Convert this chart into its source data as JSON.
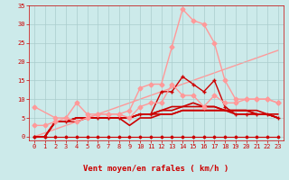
{
  "bg_color": "#cceaea",
  "grid_color": "#aacccc",
  "text_color": "#cc0000",
  "xlabel": "Vent moyen/en rafales ( km/h )",
  "xlim": [
    -0.5,
    23.5
  ],
  "ylim": [
    -1,
    35
  ],
  "yticks": [
    0,
    5,
    10,
    15,
    20,
    25,
    30,
    35
  ],
  "xticks": [
    0,
    1,
    2,
    3,
    4,
    5,
    6,
    7,
    8,
    9,
    10,
    11,
    12,
    13,
    14,
    15,
    16,
    17,
    18,
    19,
    20,
    21,
    22,
    23
  ],
  "series": [
    {
      "x": [
        0,
        1,
        2,
        3,
        4,
        5,
        6,
        7,
        8,
        9,
        10,
        11,
        12,
        13,
        14,
        15,
        16,
        17,
        18,
        19,
        20,
        21,
        22,
        23
      ],
      "y": [
        0,
        0,
        0,
        0,
        0,
        0,
        0,
        0,
        0,
        0,
        0,
        0,
        0,
        0,
        0,
        0,
        0,
        0,
        0,
        0,
        0,
        0,
        0,
        0
      ],
      "color": "#cc0000",
      "lw": 0.8,
      "marker": "D",
      "ms": 1.5,
      "zorder": 3
    },
    {
      "x": [
        0,
        1,
        2,
        3,
        4,
        5,
        6,
        7,
        8,
        9,
        10,
        11,
        12,
        13,
        14,
        15,
        16,
        17,
        18,
        19,
        20,
        21,
        22,
        23
      ],
      "y": [
        0,
        0,
        4,
        4,
        4,
        5,
        5,
        5,
        5,
        5,
        6,
        6,
        12,
        12,
        16,
        14,
        12,
        15,
        8,
        6,
        6,
        6,
        6,
        5
      ],
      "color": "#cc0000",
      "lw": 1.0,
      "marker": "+",
      "ms": 3,
      "zorder": 4
    },
    {
      "x": [
        0,
        1,
        2,
        3,
        4,
        5,
        6,
        7,
        8,
        9,
        10,
        11,
        12,
        13,
        14,
        15,
        16,
        17,
        18,
        19,
        20,
        21,
        22,
        23
      ],
      "y": [
        0,
        0,
        4,
        4,
        5,
        5,
        5,
        5,
        5,
        5,
        6,
        6,
        7,
        7,
        8,
        8,
        8,
        8,
        7,
        6,
        6,
        6,
        6,
        5
      ],
      "color": "#cc0000",
      "lw": 1.2,
      "marker": null,
      "ms": 0,
      "zorder": 2
    },
    {
      "x": [
        0,
        1,
        2,
        3,
        4,
        5,
        6,
        7,
        8,
        9,
        10,
        11,
        12,
        13,
        14,
        15,
        16,
        17,
        18,
        19,
        20,
        21,
        22,
        23
      ],
      "y": [
        0,
        0,
        4,
        4,
        5,
        5,
        5,
        5,
        5,
        3,
        5,
        5,
        6,
        6,
        7,
        7,
        7,
        7,
        7,
        7,
        7,
        6,
        6,
        5
      ],
      "color": "#cc0000",
      "lw": 1.2,
      "marker": null,
      "ms": 0,
      "zorder": 2
    },
    {
      "x": [
        0,
        1,
        2,
        3,
        4,
        5,
        6,
        7,
        8,
        9,
        10,
        11,
        12,
        13,
        14,
        15,
        16,
        17,
        18,
        19,
        20,
        21,
        22,
        23
      ],
      "y": [
        0,
        0,
        4,
        4,
        5,
        5,
        5,
        5,
        5,
        5,
        6,
        6,
        6,
        6,
        7,
        7,
        7,
        7,
        7,
        7,
        7,
        6,
        6,
        5
      ],
      "color": "#cc0000",
      "lw": 1.2,
      "marker": null,
      "ms": 0,
      "zorder": 2
    },
    {
      "x": [
        0,
        1,
        2,
        3,
        4,
        5,
        6,
        7,
        8,
        9,
        10,
        11,
        12,
        13,
        14,
        15,
        16,
        17,
        18,
        19,
        20,
        21,
        22,
        23
      ],
      "y": [
        0,
        0,
        4,
        4,
        5,
        5,
        5,
        5,
        5,
        5,
        6,
        6,
        7,
        8,
        8,
        9,
        8,
        8,
        7,
        7,
        7,
        7,
        6,
        6
      ],
      "color": "#cc0000",
      "lw": 1.2,
      "marker": null,
      "ms": 0,
      "zorder": 2
    },
    {
      "x": [
        0,
        2,
        3,
        4,
        5,
        6,
        7,
        8,
        9,
        10,
        11,
        12,
        13,
        14,
        15,
        16,
        17,
        18,
        19,
        20,
        21,
        22,
        23
      ],
      "y": [
        8,
        5,
        5,
        4,
        5,
        6,
        6,
        6,
        7,
        13,
        14,
        14,
        24,
        34,
        31,
        30,
        25,
        15,
        10,
        10,
        10,
        10,
        9
      ],
      "color": "#ff9999",
      "lw": 1.0,
      "marker": "D",
      "ms": 2.5,
      "zorder": 5
    },
    {
      "x": [
        0,
        1,
        2,
        3,
        4,
        5,
        6,
        7,
        8,
        9,
        10,
        11,
        12,
        13,
        14,
        15,
        16,
        17,
        18,
        19,
        20,
        21,
        22,
        23
      ],
      "y": [
        3,
        3,
        4,
        5,
        9,
        6,
        6,
        6,
        6,
        5,
        8,
        9,
        9,
        14,
        11,
        11,
        8,
        11,
        9,
        9,
        10,
        10,
        10,
        9
      ],
      "color": "#ff9999",
      "lw": 1.0,
      "marker": "D",
      "ms": 2.5,
      "zorder": 5
    },
    {
      "x": [
        0,
        23
      ],
      "y": [
        0,
        23
      ],
      "color": "#ff9999",
      "lw": 1.0,
      "marker": null,
      "ms": 0,
      "zorder": 1
    }
  ],
  "wind_symbols": [
    "↙",
    "↙",
    "↗",
    "↘",
    "↘",
    "↙",
    "↙",
    "↗",
    "↗",
    "↖",
    "↑",
    "↑",
    "↖",
    "↑",
    "↖",
    "↑",
    "↖",
    "↑",
    "↖",
    "↙",
    "↙",
    "↙",
    "↙"
  ],
  "tick_fontsize": 5.0,
  "label_fontsize": 6.5,
  "arrow_fontsize": 4.5
}
